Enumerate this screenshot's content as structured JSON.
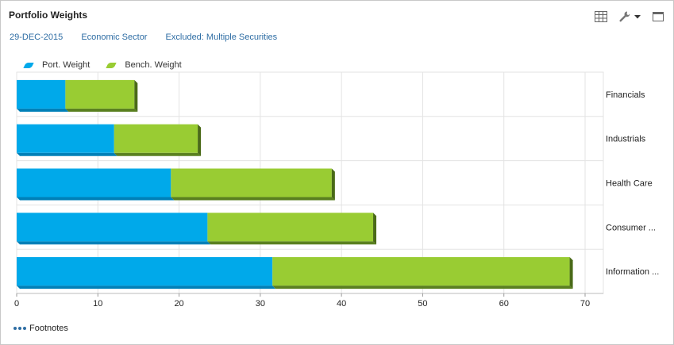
{
  "panel": {
    "title": "Portfolio Weights",
    "filters": {
      "date": "29-DEC-2015",
      "grouping": "Economic Sector",
      "exclusion": "Excluded: Multiple Securities"
    },
    "footnotes_label": "Footnotes",
    "toolbar_icons": [
      "grid-icon",
      "wrench-icon",
      "caret-down-icon",
      "maximize-icon"
    ]
  },
  "colors": {
    "port": "#00a9ea",
    "port_shade": "#0080b8",
    "bench": "#99cc33",
    "bench_shade": "#5a8020",
    "bench_side": "#4a6a18",
    "link": "#2e6da4"
  },
  "chart_data": {
    "type": "bar",
    "orientation": "horizontal",
    "stacked": true,
    "categories": [
      "Financials",
      "Industrials",
      "Health Care",
      "Consumer ...",
      "Information ..."
    ],
    "series": [
      {
        "name": "Port. Weight",
        "values": [
          6,
          12,
          19,
          23.5,
          31.5
        ]
      },
      {
        "name": "Bench. Weight",
        "values": [
          8.5,
          10.3,
          19.8,
          20.4,
          36.6
        ]
      }
    ],
    "xlim": [
      0,
      70
    ],
    "xticks": [
      0,
      10,
      20,
      30,
      40,
      50,
      60,
      70
    ],
    "grid": true,
    "legend": "top-left",
    "category_axis": "right"
  }
}
